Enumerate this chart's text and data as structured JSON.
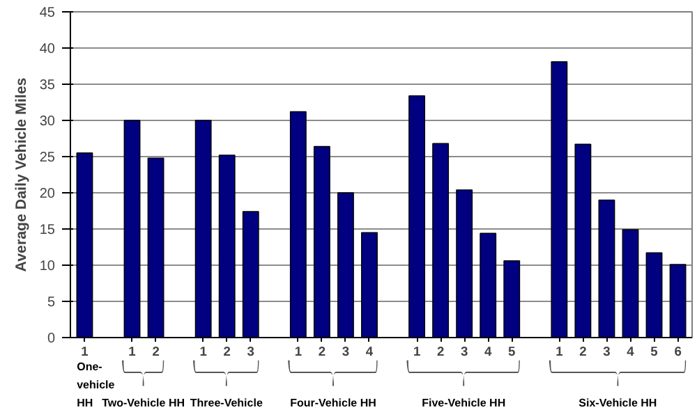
{
  "chart_data": {
    "type": "bar",
    "ylabel": "Average Daily Vehicle Miles",
    "categories": [
      "1",
      null,
      "1",
      "2",
      null,
      "1",
      "2",
      "3",
      null,
      "1",
      "2",
      "3",
      "4",
      null,
      "1",
      "2",
      "3",
      "4",
      "5",
      null,
      "1",
      "2",
      "3",
      "4",
      "5",
      "6"
    ],
    "values": [
      25.5,
      null,
      30,
      24.8,
      null,
      30,
      25.2,
      17.4,
      null,
      31.2,
      26.4,
      20,
      14.5,
      null,
      33.4,
      26.8,
      20.4,
      14.4,
      10.6,
      null,
      38.1,
      26.7,
      19,
      14.9,
      11.7,
      10.1
    ],
    "color": "#000080",
    "ylim": [
      0,
      45
    ],
    "yticks": [
      0,
      5,
      10,
      15,
      20,
      25,
      30,
      35,
      40,
      45
    ],
    "grid": "y",
    "annotations": [
      "One-vehicle HH",
      "Two-Vehicle HH",
      "Three-Vehicle",
      "Four-Vehicle HH",
      "Five-Vehicle HH",
      "Six-Vehicle HH"
    ]
  }
}
